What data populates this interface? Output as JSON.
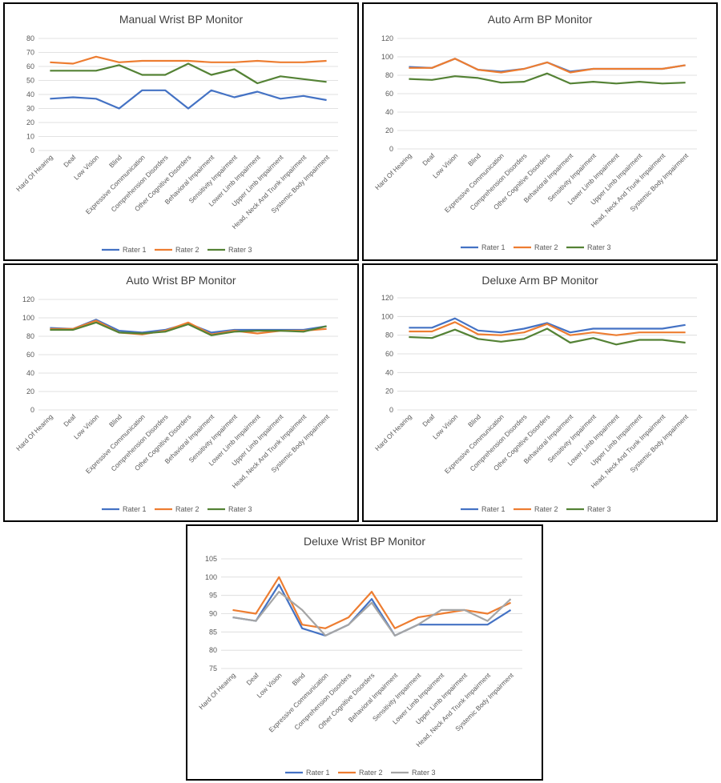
{
  "chart_data": [
    {
      "type": "line",
      "title": "Manual Wrist BP Monitor",
      "categories": [
        "Hard Of Hearing",
        "Deaf",
        "Low Vision",
        "Blind",
        "Expressive Communication",
        "Comprehension Disorders",
        "Other Cognitive Disorders",
        "Behavioral Impairment",
        "Sensitivity Impairment",
        "Lower Limb Impairment",
        "Upper Limb Impairment",
        "Head, Neck And Trunk Impairment",
        "Systemic Body Impairment"
      ],
      "ylim": [
        0,
        80
      ],
      "yticks": [
        0,
        10,
        20,
        30,
        40,
        50,
        60,
        70,
        80
      ],
      "grid": true,
      "legend": "bottom",
      "series": [
        {
          "name": "Rater 1",
          "color": "#4472c4",
          "values": [
            37,
            38,
            37,
            30,
            43,
            43,
            30,
            43,
            38,
            42,
            37,
            39,
            36
          ]
        },
        {
          "name": "Rater 2",
          "color": "#ed7d31",
          "values": [
            63,
            62,
            67,
            63,
            64,
            64,
            64,
            63,
            63,
            64,
            63,
            63,
            64
          ]
        },
        {
          "name": "Rater 3",
          "color": "#548235",
          "values": [
            57,
            57,
            57,
            61,
            54,
            54,
            62,
            54,
            58,
            48,
            53,
            51,
            49
          ]
        }
      ]
    },
    {
      "type": "line",
      "title": "Auto Arm BP Monitor",
      "categories": [
        "Hard Of Hearing",
        "Deaf",
        "Low Vision",
        "Blind",
        "Expressive Communication",
        "Comprehension Disorders",
        "Other Cognitive Disorders",
        "Behavioral Impairment",
        "Sensitivity Impairment",
        "Lower Limb Impairment",
        "Upper Limb Impairment",
        "Head, Neck And Trunk Impairment",
        "Systemic Body Impairment"
      ],
      "ylim": [
        0,
        120
      ],
      "yticks": [
        0,
        20,
        40,
        60,
        80,
        100,
        120
      ],
      "grid": true,
      "legend": "bottom",
      "series": [
        {
          "name": "Rater 1",
          "color": "#4472c4",
          "values": [
            89,
            88,
            98,
            86,
            84,
            87,
            94,
            84,
            87,
            87,
            87,
            87,
            91
          ]
        },
        {
          "name": "Rater 2",
          "color": "#ed7d31",
          "values": [
            88,
            88,
            98,
            86,
            83,
            87,
            94,
            83,
            87,
            87,
            87,
            87,
            91
          ]
        },
        {
          "name": "Rater 3",
          "color": "#548235",
          "values": [
            76,
            75,
            79,
            77,
            72,
            73,
            82,
            71,
            73,
            71,
            73,
            71,
            72
          ]
        }
      ]
    },
    {
      "type": "line",
      "title": "Auto Wrist BP Monitor",
      "categories": [
        "Hard Of Hearing",
        "Deaf",
        "Low Vision",
        "Blind",
        "Expressive Communication",
        "Comprehension Disorders",
        "Other Cognitive Disorders",
        "Behavioral Impairment",
        "Sensitivity Impairment",
        "Lower Limb Impairment",
        "Upper Limb Impairment",
        "Head, Neck And Trunk Impairment",
        "Systemic Body Impairment"
      ],
      "ylim": [
        0,
        120
      ],
      "yticks": [
        0,
        20,
        40,
        60,
        80,
        100,
        120
      ],
      "grid": true,
      "legend": "bottom",
      "series": [
        {
          "name": "Rater 1",
          "color": "#4472c4",
          "values": [
            89,
            88,
            98,
            86,
            84,
            87,
            94,
            84,
            87,
            87,
            87,
            87,
            91
          ]
        },
        {
          "name": "Rater 2",
          "color": "#ed7d31",
          "values": [
            88,
            88,
            97,
            84,
            82,
            86,
            95,
            82,
            86,
            83,
            86,
            86,
            88
          ]
        },
        {
          "name": "Rater 3",
          "color": "#548235",
          "values": [
            87,
            87,
            95,
            84,
            83,
            85,
            93,
            81,
            85,
            86,
            86,
            85,
            91
          ]
        }
      ]
    },
    {
      "type": "line",
      "title": "Deluxe Arm BP Monitor",
      "categories": [
        "Hard Of Hearing",
        "Deaf",
        "Low Vision",
        "Blind",
        "Expressive Communication",
        "Comprehension Disorders",
        "Other Cognitive Disorders",
        "Behavioral Impairment",
        "Sensitivity Impairment",
        "Lower Limb Impairment",
        "Upper Limb Impairment",
        "Head, Neck And Trunk Impairment",
        "Systemic Body Impairment"
      ],
      "ylim": [
        0,
        120
      ],
      "yticks": [
        0,
        20,
        40,
        60,
        80,
        100,
        120
      ],
      "grid": true,
      "legend": "bottom",
      "series": [
        {
          "name": "Rater 1",
          "color": "#4472c4",
          "values": [
            88,
            88,
            98,
            85,
            83,
            87,
            93,
            83,
            87,
            87,
            87,
            87,
            91
          ]
        },
        {
          "name": "Rater 2",
          "color": "#ed7d31",
          "values": [
            84,
            84,
            94,
            81,
            80,
            83,
            92,
            80,
            83,
            80,
            83,
            83,
            83
          ]
        },
        {
          "name": "Rater 3",
          "color": "#548235",
          "values": [
            78,
            77,
            86,
            76,
            73,
            76,
            87,
            72,
            77,
            70,
            75,
            75,
            72
          ]
        }
      ]
    },
    {
      "type": "line",
      "title": "Deluxe Wrist BP Monitor",
      "categories": [
        "Hard Of Hearing",
        "Deaf",
        "Low Vision",
        "Blind",
        "Expressive Communication",
        "Comprehension Disorders",
        "Other Cognitive Disorders",
        "Behavioral Impairment",
        "Sensitivity Impairment",
        "Lower Limb Impairment",
        "Upper Limb Impairment",
        "Head, Neck And Trunk Impairment",
        "Systemic Body Impairment"
      ],
      "ylim": [
        75,
        105
      ],
      "yticks": [
        75,
        80,
        85,
        90,
        95,
        100,
        105
      ],
      "grid": true,
      "legend": "bottom",
      "series": [
        {
          "name": "Rater 1",
          "color": "#4472c4",
          "values": [
            89,
            88,
            98,
            86,
            84,
            87,
            94,
            84,
            87,
            87,
            87,
            87,
            91
          ]
        },
        {
          "name": "Rater 2",
          "color": "#ed7d31",
          "values": [
            91,
            90,
            100,
            87,
            86,
            89,
            96,
            86,
            89,
            90,
            91,
            90,
            93
          ]
        },
        {
          "name": "Rater 3",
          "color": "#a5a5a5",
          "values": [
            89,
            88,
            96,
            91,
            84,
            87,
            93,
            84,
            87,
            91,
            91,
            88,
            94
          ]
        }
      ]
    }
  ]
}
